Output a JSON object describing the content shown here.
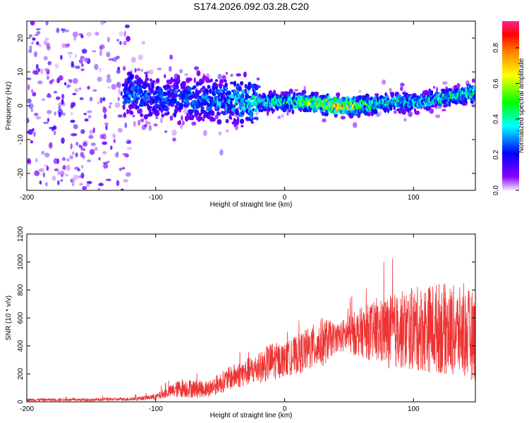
{
  "title": "S174.2026.092.03.28.C20",
  "chart_data": [
    {
      "type": "heatmap",
      "xlabel": "Height of straight line (km)",
      "ylabel": "Frequency (Hz)",
      "xlim": [
        -200,
        148
      ],
      "ylim": [
        -25,
        25
      ],
      "xticks": [
        -200,
        -100,
        0,
        100
      ],
      "yticks": [
        -20,
        -10,
        0,
        10,
        20
      ],
      "colorbar": {
        "label": "Normalized spectral amplitude",
        "range": [
          0,
          0.95
        ],
        "ticks": [
          "0.0",
          "0.2",
          "0.4",
          "0.6",
          "0.8"
        ]
      },
      "ridge": {
        "description_points_x": [
          -120,
          -100,
          -60,
          -20,
          0,
          20,
          40,
          60,
          80,
          100,
          120,
          148
        ],
        "frequency_hz": [
          4,
          2,
          2,
          1,
          1,
          1,
          0,
          0,
          1,
          1,
          2,
          4
        ],
        "peak_amplitude": [
          0.35,
          0.3,
          0.35,
          0.5,
          0.55,
          0.65,
          0.95,
          0.6,
          0.5,
          0.45,
          0.5,
          0.55
        ]
      }
    },
    {
      "type": "line",
      "xlabel": "Height of straight line (km)",
      "ylabel": "SNR (10 * v/v)",
      "xlim": [
        -200,
        148
      ],
      "ylim": [
        0,
        1200
      ],
      "xticks": [
        -200,
        -100,
        0,
        100
      ],
      "yticks": [
        0,
        200,
        400,
        600,
        800,
        1000,
        1200
      ],
      "color": "#ee3333",
      "envelope": {
        "x": [
          -200,
          -150,
          -120,
          -100,
          -90,
          -80,
          -60,
          -40,
          -20,
          -10,
          0,
          20,
          30,
          40,
          60,
          80,
          100,
          120,
          148
        ],
        "mean": [
          15,
          15,
          20,
          35,
          70,
          100,
          90,
          180,
          240,
          290,
          300,
          380,
          430,
          460,
          500,
          500,
          520,
          530,
          470
        ],
        "spread": [
          10,
          10,
          12,
          20,
          40,
          70,
          60,
          90,
          110,
          140,
          120,
          160,
          180,
          100,
          180,
          260,
          300,
          330,
          320
        ]
      }
    }
  ]
}
